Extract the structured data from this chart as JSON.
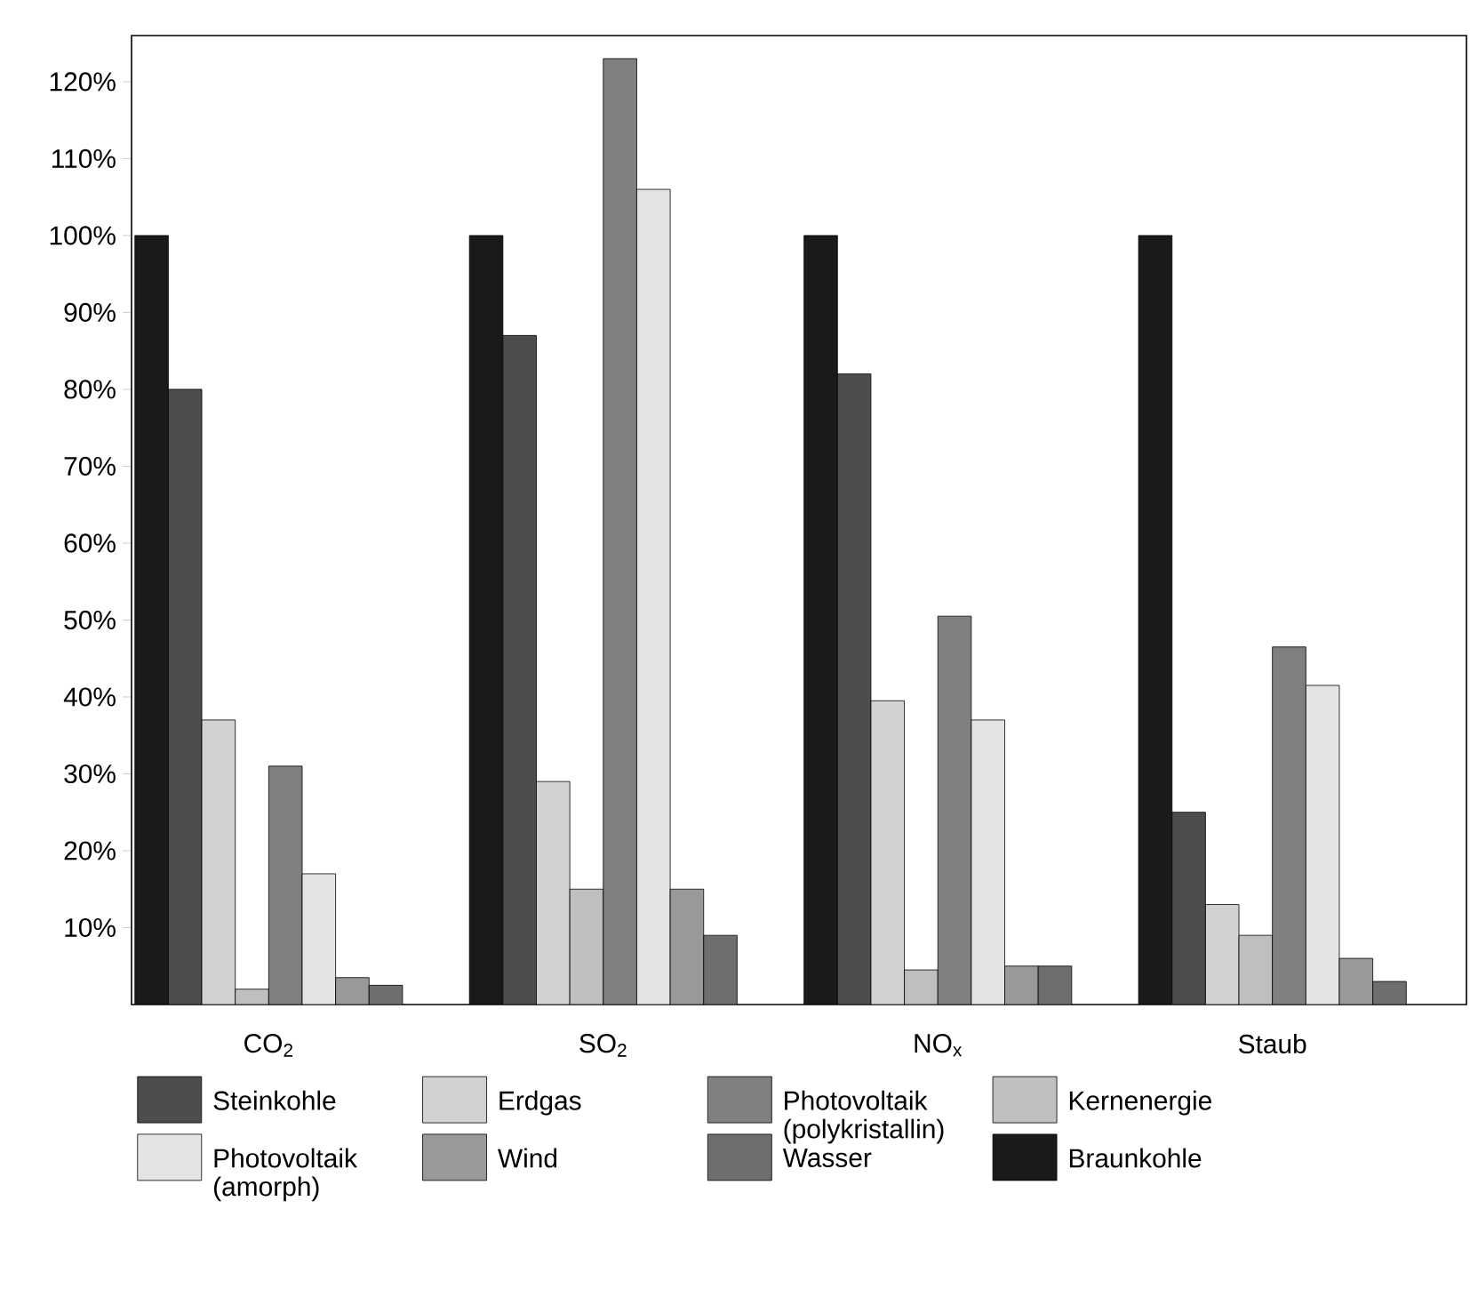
{
  "chart_data": {
    "type": "bar",
    "categories": [
      "CO$_{2}$",
      "SO$_{2}$",
      "NO$_{x}$",
      "Staub"
    ],
    "ylim": [
      0,
      126
    ],
    "yticks": [
      {
        "value": 10,
        "label": "10%"
      },
      {
        "value": 20,
        "label": "20%"
      },
      {
        "value": 30,
        "label": "30%"
      },
      {
        "value": 40,
        "label": "40%"
      },
      {
        "value": 50,
        "label": "50%"
      },
      {
        "value": 60,
        "label": "60%"
      },
      {
        "value": 70,
        "label": "70%"
      },
      {
        "value": 80,
        "label": "80%"
      },
      {
        "value": 90,
        "label": "90%"
      },
      {
        "value": 100,
        "label": "100%"
      },
      {
        "value": 110,
        "label": "110%"
      },
      {
        "value": 120,
        "label": "120%"
      }
    ],
    "legend": "bottom",
    "series": [
      {
        "name": "Braunkohle",
        "color": "#1a1a1a",
        "values": [
          100,
          100,
          100,
          100
        ]
      },
      {
        "name": "Steinkohle",
        "color": "#4d4d4d",
        "values": [
          80,
          87,
          82,
          25
        ]
      },
      {
        "name": "Erdgas",
        "color": "#d2d2d2",
        "values": [
          37,
          29,
          39.5,
          13
        ]
      },
      {
        "name": "Kernenergie",
        "color": "#bfbfbf",
        "values": [
          2,
          15,
          4.5,
          9
        ]
      },
      {
        "name": "Photovoltaik (polykristallin)",
        "color": "#808080",
        "values": [
          31,
          123,
          50.5,
          46.5
        ]
      },
      {
        "name": "Photovoltaik (amorph)",
        "color": "#e4e4e4",
        "values": [
          17,
          106,
          37,
          41.5
        ]
      },
      {
        "name": "Wind",
        "color": "#999999",
        "values": [
          3.5,
          15,
          5,
          6
        ]
      },
      {
        "name": "Wasser",
        "color": "#6e6e6e",
        "values": [
          2.5,
          9,
          5,
          3
        ]
      }
    ]
  }
}
